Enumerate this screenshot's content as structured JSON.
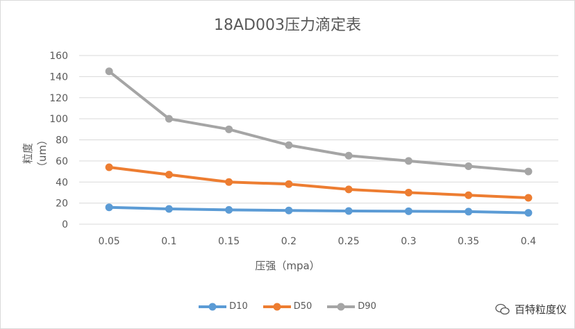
{
  "chart_data": {
    "type": "line",
    "title": "18AD003压力滴定表",
    "xlabel": "压强（mpa）",
    "ylabel": "粒度（um）",
    "categories": [
      "0.05",
      "0.1",
      "0.15",
      "0.2",
      "0.25",
      "0.3",
      "0.35",
      "0.4"
    ],
    "ylim": [
      0,
      160
    ],
    "yticks": [
      0,
      20,
      40,
      60,
      80,
      100,
      120,
      140,
      160
    ],
    "grid": true,
    "legend_position": "bottom",
    "series": [
      {
        "name": "D10",
        "color": "#5b9bd5",
        "values": [
          16,
          14.5,
          13.6,
          13,
          12.5,
          12.3,
          11.9,
          10.8
        ]
      },
      {
        "name": "D50",
        "color": "#ed7d31",
        "values": [
          54,
          47,
          40,
          38,
          33,
          30,
          27.5,
          25
        ]
      },
      {
        "name": "D90",
        "color": "#a5a5a5",
        "values": [
          145,
          100,
          90,
          75,
          65,
          60,
          55,
          50
        ]
      }
    ]
  },
  "watermark": {
    "text": "百特粒度仪",
    "icon": "wechat-icon"
  }
}
